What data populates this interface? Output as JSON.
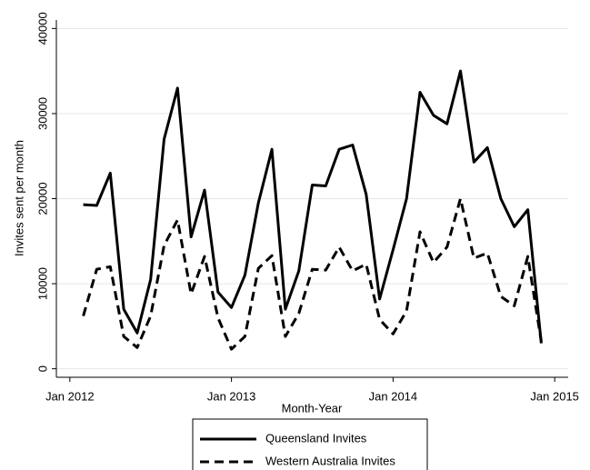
{
  "chart_data": {
    "type": "line",
    "y_label": "Invites sent per month",
    "x_label": "Month-Year",
    "x": [
      "Feb 2012",
      "Mar 2012",
      "Apr 2012",
      "May 2012",
      "Jun 2012",
      "Jul 2012",
      "Aug 2012",
      "Sep 2012",
      "Oct 2012",
      "Nov 2012",
      "Dec 2012",
      "Jan 2013",
      "Feb 2013",
      "Mar 2013",
      "Apr 2013",
      "May 2013",
      "Jun 2013",
      "Jul 2013",
      "Aug 2013",
      "Sep 2013",
      "Oct 2013",
      "Nov 2013",
      "Dec 2013",
      "Jan 2014",
      "Feb 2014",
      "Mar 2014",
      "Apr 2014",
      "May 2014",
      "Jun 2014",
      "Jul 2014",
      "Aug 2014",
      "Sep 2014",
      "Oct 2014",
      "Nov 2014",
      "Dec 2014"
    ],
    "series": [
      {
        "name": "Queensland Invites",
        "color": "#000000",
        "line_style": "solid",
        "values": [
          19300,
          19200,
          23000,
          7000,
          4200,
          10500,
          27000,
          33000,
          15500,
          21000,
          9000,
          7200,
          11000,
          19500,
          25800,
          7000,
          11500,
          21600,
          21500,
          25800,
          26300,
          20500,
          8200,
          14000,
          20000,
          32500,
          29800,
          28800,
          35000,
          24300,
          26000,
          20000,
          16700,
          18700,
          3000
        ]
      },
      {
        "name": "Western Australia Invites",
        "color": "#000000",
        "line_style": "dashed",
        "values": [
          6200,
          11700,
          12000,
          3800,
          2500,
          6200,
          14500,
          17500,
          8800,
          13200,
          6000,
          2300,
          3800,
          11800,
          13300,
          3800,
          6500,
          11700,
          11600,
          14300,
          11500,
          12300,
          5800,
          4100,
          6800,
          16100,
          12500,
          14300,
          20000,
          13000,
          13600,
          8500,
          7400,
          13200,
          3200
        ]
      }
    ],
    "xlim": [
      "Dec 2011",
      "Feb 2015"
    ],
    "xticks": [
      "Jan 2012",
      "Jan 2013",
      "Jan 2014",
      "Jan 2015"
    ],
    "ylim": [
      -1000,
      41000
    ],
    "yticks": [
      0,
      10000,
      20000,
      30000,
      40000
    ],
    "grid": true,
    "legend": "bottom"
  }
}
